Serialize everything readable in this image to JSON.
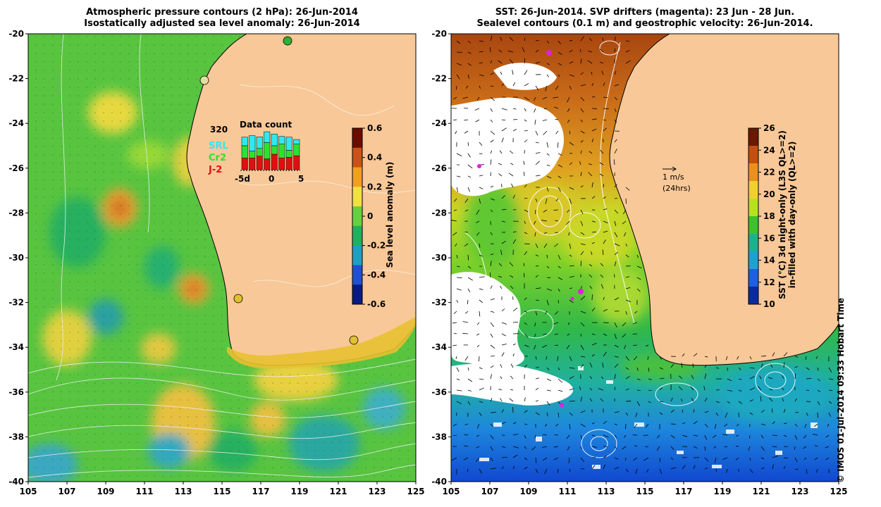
{
  "left_panel": {
    "title_line1": "Atmospheric pressure contours (2 hPa): 26-Jun-2014",
    "title_line2": "Isostatically adjusted sea level anomaly: 26-Jun-2014",
    "colorbar": {
      "label": "Sea level anomaly (m)",
      "ticks": [
        "0.6",
        "0.4",
        "0.2",
        "0",
        "-0.2",
        "-0.4",
        "-0.6"
      ],
      "colors": [
        "#6a0d00",
        "#c8521a",
        "#f0a020",
        "#f2e040",
        "#66d040",
        "#20b060",
        "#20a0c0",
        "#2050d0",
        "#0a1a80"
      ]
    },
    "inset": {
      "title": "Data count",
      "max_label": "320",
      "legend": [
        {
          "label": "SRL",
          "color": "#30e8f0"
        },
        {
          "label": "Cr2",
          "color": "#30e030"
        },
        {
          "label": "J-2",
          "color": "#e01010"
        }
      ],
      "x_labels": [
        "-5d",
        "0",
        "5"
      ],
      "bars": [
        {
          "j2": 0.3,
          "cr2": 0.32,
          "srl": 0.22
        },
        {
          "j2": 0.3,
          "cr2": 0.18,
          "srl": 0.4
        },
        {
          "j2": 0.35,
          "cr2": 0.2,
          "srl": 0.3
        },
        {
          "j2": 0.28,
          "cr2": 0.42,
          "srl": 0.28
        },
        {
          "j2": 0.4,
          "cr2": 0.22,
          "srl": 0.3
        },
        {
          "j2": 0.3,
          "cr2": 0.36,
          "srl": 0.2
        },
        {
          "j2": 0.32,
          "cr2": 0.18,
          "srl": 0.34
        },
        {
          "j2": 0.36,
          "cr2": 0.3,
          "srl": 0.12
        }
      ]
    }
  },
  "right_panel": {
    "title_line1": "SST: 26-Jun-2014. SVP drifters (magenta): 23 Jun - 28 Jun.",
    "title_line2": "Sealevel contours (0.1 m) and geostrophic velocity: 26-Jun-2014.",
    "velocity_scale_label": "1 m/s",
    "velocity_scale_sub": "(24hrs)",
    "colorbar": {
      "label_line1": "SST (°C) 3d night-only (L3S QL>=2)",
      "label_line2": "in-filled with day-only (QL>=2)",
      "ticks": [
        "26",
        "24",
        "22",
        "20",
        "18",
        "16",
        "14",
        "12",
        "10"
      ],
      "colors": [
        "#6a1800",
        "#c05010",
        "#e89020",
        "#f0d030",
        "#b8e020",
        "#40c030",
        "#20b090",
        "#20a0d0",
        "#2060e0",
        "#0a2aa0"
      ]
    }
  },
  "axes": {
    "x_ticks": [
      "105",
      "107",
      "109",
      "111",
      "113",
      "115",
      "117",
      "119",
      "121",
      "123",
      "125"
    ],
    "y_ticks": [
      "-20",
      "-22",
      "-24",
      "-26",
      "-28",
      "-30",
      "-32",
      "-34",
      "-36",
      "-38",
      "-40"
    ]
  },
  "copyright": "© IMOS 01-Jul-2014 09:33 Hobart Time"
}
